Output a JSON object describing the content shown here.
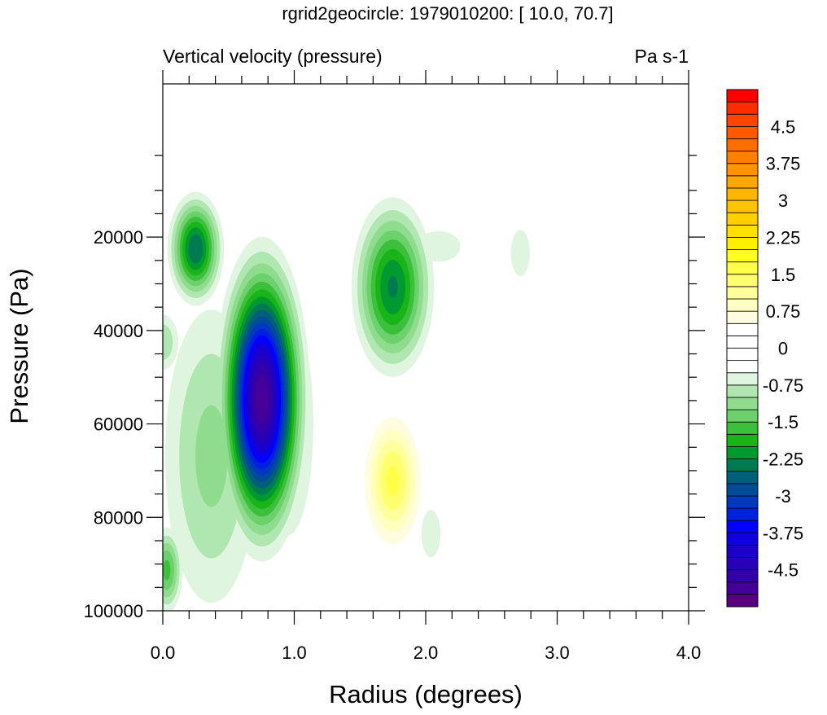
{
  "chart_data": {
    "type": "heatmap",
    "subtype": "filled-contour",
    "title": "rgrid2geocircle: 1979010200: [ 10.0, 70.7]",
    "left_subtitle": "Vertical velocity (pressure)",
    "right_subtitle": "Pa s-1",
    "xlabel": "Radius (degrees)",
    "ylabel": "Pressure (Pa)",
    "xlim": [
      0,
      4
    ],
    "ylim": [
      -12800,
      100000
    ],
    "y_reversed": true,
    "x_ticks": [
      0,
      1,
      2,
      3,
      4
    ],
    "x_tick_labels": [
      "0.0",
      "1.0",
      "2.0",
      "3.0",
      "4.0"
    ],
    "x_minor_step": 0.2,
    "y_ticks": [
      20000,
      40000,
      60000,
      80000,
      100000
    ],
    "y_tick_labels": [
      "20000",
      "40000",
      "60000",
      "80000",
      "100000"
    ],
    "y_minor_ticks": [
      2500,
      10000,
      15000,
      25000,
      30000,
      35000,
      45000,
      50000,
      55000,
      65000,
      70000,
      75000,
      85000,
      90000,
      95000
    ],
    "levels": {
      "min": -5,
      "max": 5,
      "step": 0.25
    },
    "colorbar_labels": [
      "4.5",
      "3.75",
      "3",
      "2.25",
      "1.5",
      "0.75",
      "0",
      "-0.75",
      "-1.5",
      "-2.25",
      "-3",
      "-3.75",
      "-4.5"
    ],
    "colorbar_label_values": [
      4.5,
      3.75,
      3,
      2.25,
      1.5,
      0.75,
      0,
      -0.75,
      -1.5,
      -2.25,
      -3,
      -3.75,
      -4.5
    ],
    "palette": [
      "#580080",
      "#440098",
      "#3400a8",
      "#2800b8",
      "#1c00c8",
      "#1000e0",
      "#0000ff",
      "#0020e0",
      "#0038c0",
      "#004c98",
      "#00607a",
      "#007a50",
      "#009a30",
      "#18b418",
      "#3cc03c",
      "#6cd06c",
      "#8fdc8f",
      "#b0e6b0",
      "#dff5df",
      "#ffffff",
      "#ffffff",
      "#ffffff",
      "#ffffff",
      "#fffce0",
      "#ffffc0",
      "#ffff9c",
      "#ffff70",
      "#ffff48",
      "#ffff20",
      "#fff000",
      "#ffe000",
      "#ffd000",
      "#ffc400",
      "#ffb400",
      "#ffa800",
      "#ff9400",
      "#ff8000",
      "#ff6c00",
      "#ff5800",
      "#ff4400",
      "#ff2c00",
      "#ff0000"
    ],
    "field_features": [
      {
        "name": "broad-left",
        "x": 0.37,
        "p": 66900,
        "amp": -1.1,
        "sx": 0.28,
        "sp": 25000
      },
      {
        "name": "right-flank",
        "x": 0.95,
        "p": 60000,
        "amp": -0.9,
        "sx": 0.18,
        "sp": 22000
      },
      {
        "name": "left-mid",
        "x": 0.0,
        "p": 42500,
        "amp": -1.0,
        "sx": 0.1,
        "sp": 5000
      },
      {
        "name": "bottom-left",
        "x": 0.03,
        "p": 91300,
        "amp": -1.6,
        "sx": 0.08,
        "sp": 6000
      },
      {
        "name": "upper-tail",
        "x": 2.1,
        "p": 22000,
        "amp": -0.7,
        "sx": 0.2,
        "sp": 4000
      },
      {
        "name": "small-right",
        "x": 2.72,
        "p": 23400,
        "amp": -0.65,
        "sx": 0.1,
        "sp": 6800
      },
      {
        "name": "small-lower",
        "x": 2.04,
        "p": 83500,
        "amp": -0.65,
        "sx": 0.1,
        "sp": 7000
      },
      {
        "name": "upper-left-core",
        "x": 0.25,
        "p": 22500,
        "amp": -2.5,
        "sx": 0.12,
        "sp": 6800
      },
      {
        "name": "upper-right-core",
        "x": 1.75,
        "p": 30700,
        "amp": -2.3,
        "sx": 0.18,
        "sp": 11000
      },
      {
        "name": "main-core",
        "x": 0.755,
        "p": 54700,
        "amp": -5.0,
        "sx": 0.17,
        "sp": 16200
      },
      {
        "name": "positive-core",
        "x": 1.75,
        "p": 72200,
        "amp": 1.6,
        "sx": 0.14,
        "sp": 8900
      }
    ]
  }
}
